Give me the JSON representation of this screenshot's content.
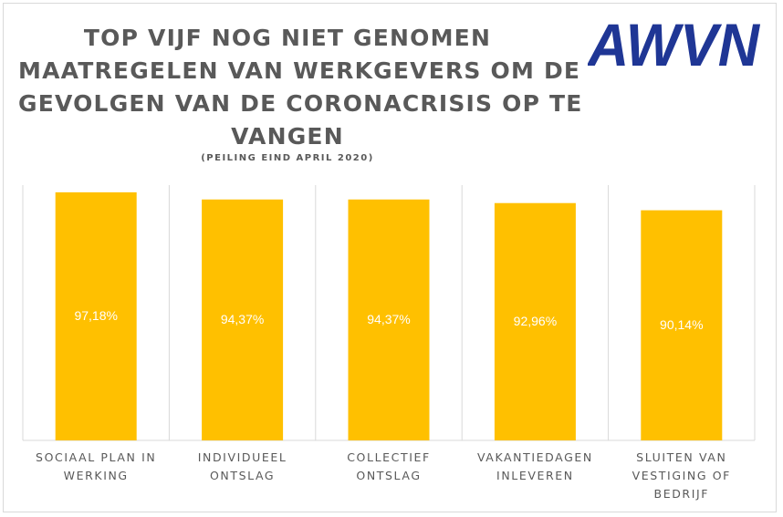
{
  "title_lines": [
    "TOP VIJF NOG NIET GENOMEN",
    "MAATREGELEN VAN WERKGEVERS OM DE",
    "GEVOLGEN VAN DE CORONACRISIS OP TE",
    "VANGEN"
  ],
  "subtitle": "(PEILING EIND APRIL 2020)",
  "logo_text": "AWVN",
  "colors": {
    "bar": "#FFC000",
    "brand": "#1F3695",
    "text": "#595959",
    "grid": "#D9D9D9"
  },
  "chart_data": {
    "type": "bar",
    "title": "TOP VIJF NOG NIET GENOMEN MAATREGELEN VAN WERKGEVERS OM DE GEVOLGEN VAN DE CORONACRISIS OP TE VANGEN",
    "subtitle": "(PEILING EIND APRIL 2020)",
    "categories": [
      [
        "SOCIAAL PLAN IN",
        "WERKING"
      ],
      [
        "INDIVIDUEEL",
        "ONTSLAG"
      ],
      [
        "COLLECTIEF",
        "ONTSLAG"
      ],
      [
        "VAKANTIEDAGEN",
        "INLEVEREN"
      ],
      [
        "SLUITEN VAN",
        "VESTIGING OF",
        "BEDRIJF"
      ]
    ],
    "values": [
      97.18,
      94.37,
      94.37,
      92.96,
      90.14
    ],
    "data_labels": [
      "97,18%",
      "94,37%",
      "94,37%",
      "92,96%",
      "90,14%"
    ],
    "ylim": [
      0,
      100
    ],
    "grid": "vertical category separators",
    "legend": "none"
  }
}
